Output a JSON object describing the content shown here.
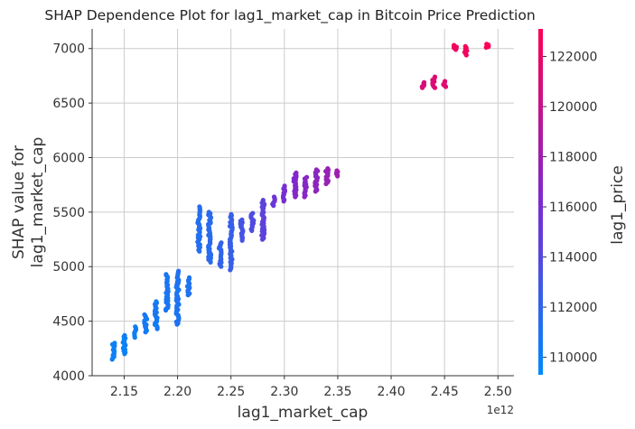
{
  "chart_data": {
    "type": "scatter",
    "title": "SHAP Dependence Plot for lag1_market_cap in Bitcoin Price Prediction",
    "xlabel": "lag1_market_cap",
    "ylabel_lines": [
      "SHAP value for",
      "lag1_market_cap"
    ],
    "x_offset_text": "1e12",
    "xlim": [
      2.12,
      2.515
    ],
    "ylim": [
      4000,
      7180
    ],
    "x_ticks": [
      2.15,
      2.2,
      2.25,
      2.3,
      2.35,
      2.4,
      2.45,
      2.5
    ],
    "x_tick_labels": [
      "2.15",
      "2.20",
      "2.25",
      "2.30",
      "2.35",
      "2.40",
      "2.45",
      "2.50"
    ],
    "y_ticks": [
      4000,
      4500,
      5000,
      5500,
      6000,
      6500,
      7000
    ],
    "y_tick_labels": [
      "4000",
      "4500",
      "5000",
      "5500",
      "6000",
      "6500",
      "7000"
    ],
    "grid": true,
    "colorbar": {
      "label": "lag1_price",
      "range": [
        109300,
        123100
      ],
      "ticks": [
        110000,
        112000,
        114000,
        116000,
        118000,
        120000,
        122000
      ],
      "tick_labels": [
        "110000",
        "112000",
        "114000",
        "116000",
        "118000",
        "120000",
        "122000"
      ],
      "low_color": "#008afb",
      "mid_color": "#7c2ad0",
      "high_color": "#ff0052"
    },
    "clusters": [
      {
        "x": 2.14,
        "y": [
          4150,
          4300
        ],
        "c": 110000
      },
      {
        "x": 2.15,
        "y": [
          4200,
          4370
        ],
        "c": 110000
      },
      {
        "x": 2.16,
        "y": [
          4350,
          4450
        ],
        "c": 110200
      },
      {
        "x": 2.17,
        "y": [
          4400,
          4560
        ],
        "c": 110400
      },
      {
        "x": 2.18,
        "y": [
          4430,
          4680
        ],
        "c": 110500
      },
      {
        "x": 2.19,
        "y": [
          4600,
          4930
        ],
        "c": 110700
      },
      {
        "x": 2.2,
        "y": [
          4470,
          4960
        ],
        "c": 110900
      },
      {
        "x": 2.21,
        "y": [
          4740,
          4900
        ],
        "c": 111000
      },
      {
        "x": 2.22,
        "y": [
          5140,
          5550
        ],
        "c": 111300
      },
      {
        "x": 2.23,
        "y": [
          5040,
          5500
        ],
        "c": 111600
      },
      {
        "x": 2.24,
        "y": [
          5000,
          5220
        ],
        "c": 112000
      },
      {
        "x": 2.25,
        "y": [
          4970,
          5480
        ],
        "c": 112400
      },
      {
        "x": 2.26,
        "y": [
          5240,
          5430
        ],
        "c": 113200
      },
      {
        "x": 2.27,
        "y": [
          5330,
          5490
        ],
        "c": 113800
      },
      {
        "x": 2.28,
        "y": [
          5250,
          5610
        ],
        "c": 114500
      },
      {
        "x": 2.29,
        "y": [
          5560,
          5640
        ],
        "c": 115300
      },
      {
        "x": 2.3,
        "y": [
          5600,
          5740
        ],
        "c": 115900
      },
      {
        "x": 2.31,
        "y": [
          5640,
          5860
        ],
        "c": 116500
      },
      {
        "x": 2.32,
        "y": [
          5640,
          5820
        ],
        "c": 116800
      },
      {
        "x": 2.33,
        "y": [
          5690,
          5890
        ],
        "c": 117200
      },
      {
        "x": 2.34,
        "y": [
          5760,
          5900
        ],
        "c": 117600
      },
      {
        "x": 2.35,
        "y": [
          5830,
          5880
        ],
        "c": 118000
      },
      {
        "x": 2.43,
        "y": [
          6640,
          6690
        ],
        "c": 121000
      },
      {
        "x": 2.44,
        "y": [
          6640,
          6740
        ],
        "c": 121300
      },
      {
        "x": 2.45,
        "y": [
          6650,
          6700
        ],
        "c": 121500
      },
      {
        "x": 2.46,
        "y": [
          6990,
          7030
        ],
        "c": 122400
      },
      {
        "x": 2.47,
        "y": [
          6940,
          7020
        ],
        "c": 122500
      },
      {
        "x": 2.49,
        "y": [
          7010,
          7040
        ],
        "c": 122900
      }
    ]
  }
}
